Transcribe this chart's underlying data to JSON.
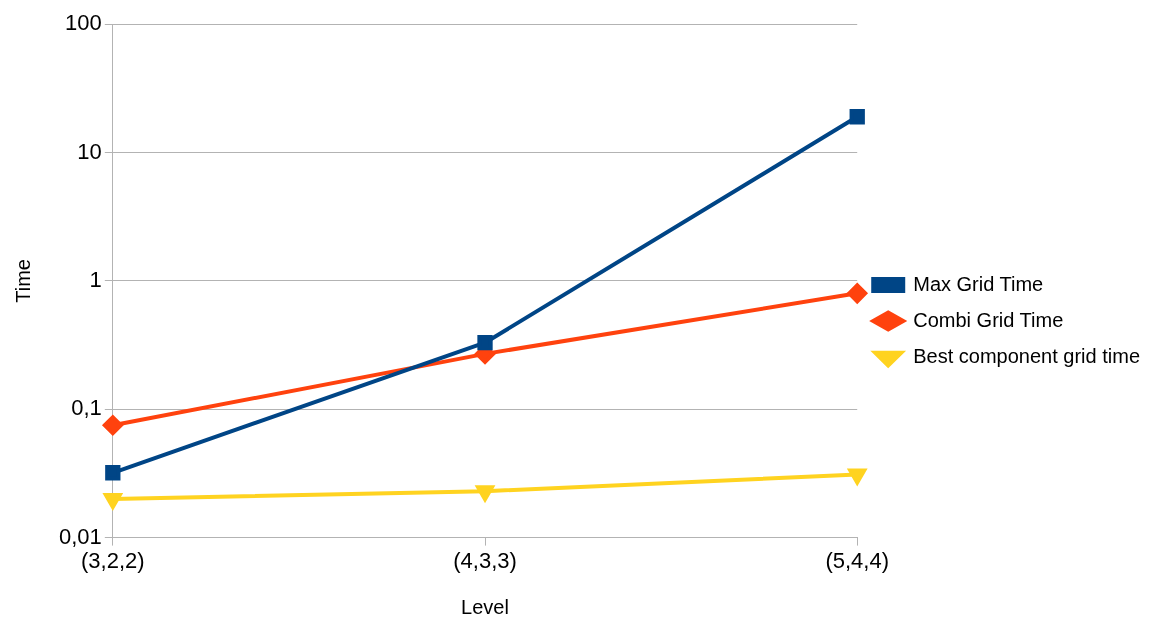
{
  "chart_data": {
    "type": "line",
    "xlabel": "Level",
    "ylabel": "Time",
    "categories": [
      "(3,2,2)",
      "(4,3,3)",
      "(5,4,4)"
    ],
    "series": [
      {
        "name": "Max Grid Time",
        "color": "#004586",
        "marker": "square",
        "values": [
          0.032,
          0.33,
          19
        ]
      },
      {
        "name": "Combi Grid Time",
        "color": "#ff420e",
        "marker": "diamond",
        "values": [
          0.075,
          0.27,
          0.8
        ]
      },
      {
        "name": "Best component grid time",
        "color": "#ffd320",
        "marker": "triangle_down",
        "values": [
          0.02,
          0.023,
          0.031
        ]
      }
    ],
    "log": "y",
    "ylim": [
      0.01,
      100
    ],
    "yticks": [
      {
        "value": 0.01,
        "label": "0,01"
      },
      {
        "value": 0.1,
        "label": "0,1"
      },
      1,
      10,
      100
    ],
    "grid": "y",
    "legend": "right",
    "line_style": "solid"
  }
}
